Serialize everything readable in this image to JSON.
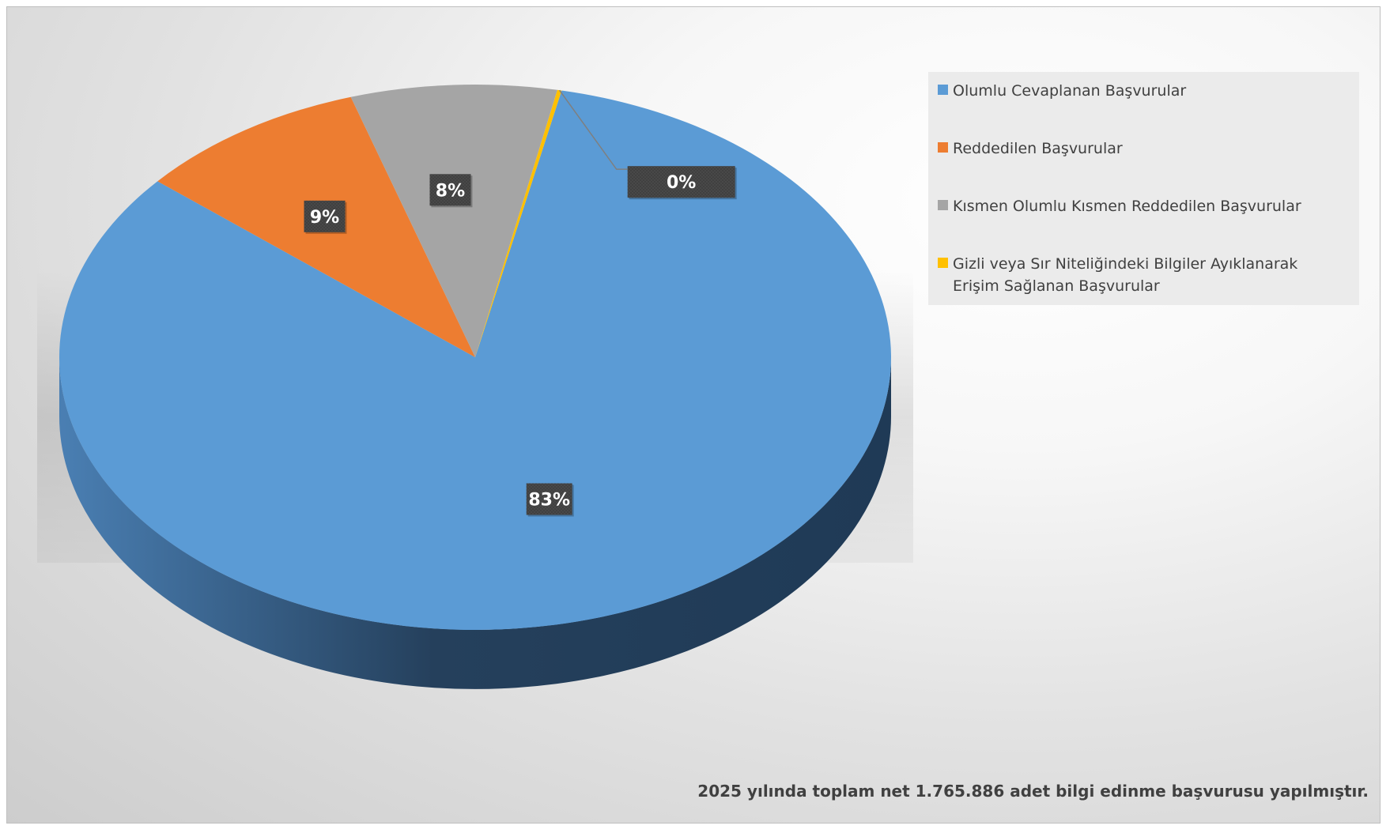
{
  "chart_data": {
    "type": "pie",
    "style": "3d",
    "categories": [
      "Olumlu Cevaplanan Başvurular",
      "Reddedilen Başvurular",
      "Kısmen Olumlu Kısmen Reddedilen Başvurular",
      "Gizli veya Sır Niteliğindeki Bilgiler Ayıklanarak Erişim Sağlanan Başvurular"
    ],
    "values": [
      83,
      9,
      8,
      0
    ],
    "data_labels": [
      "83%",
      "9%",
      "8%",
      "0%"
    ],
    "colors": [
      "#5B9BD5",
      "#ED7D31",
      "#A5A5A5",
      "#FFC000"
    ],
    "legend_position": "top-right",
    "title": "",
    "annotation": "2025 yılında toplam net 1.765.886 adet bilgi edinme başvurusu yapılmıştır."
  }
}
